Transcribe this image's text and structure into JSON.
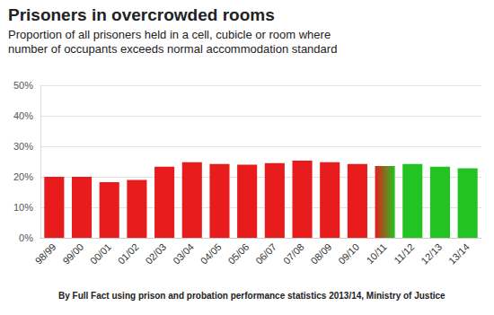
{
  "chart_data": {
    "type": "bar",
    "title": "Prisoners in overcrowded rooms",
    "subtitle": "Proportion of all prisoners held in a cell, cubicle or room where\nnumber of occupants exceeds normal accommodation standard",
    "source": "By Full Fact using prison and probation performance statistics 2013/14, Ministry of Justice",
    "categories": [
      "98/99",
      "99/00",
      "00/01",
      "01/02",
      "02/03",
      "03/04",
      "04/05",
      "05/06",
      "06/07",
      "07/08",
      "08/09",
      "09/10",
      "10/11",
      "11/12",
      "12/13",
      "13/14"
    ],
    "values": [
      20,
      20,
      18.2,
      19,
      23.3,
      24.8,
      24.2,
      24,
      24.5,
      25.3,
      24.8,
      24.2,
      23.5,
      24.2,
      23.3,
      22.8
    ],
    "colors": [
      "#e81c1c",
      "#e81c1c",
      "#e81c1c",
      "#e81c1c",
      "#e81c1c",
      "#e81c1c",
      "#e81c1c",
      "#e81c1c",
      "#e81c1c",
      "#e81c1c",
      "#e81c1c",
      "#e81c1c",
      [
        "#e81c1c",
        "#22c322"
      ],
      "#22c322",
      "#22c322",
      "#22c322"
    ],
    "ylim": [
      0,
      50
    ],
    "yticks": [
      {
        "value": 0,
        "label": "0%"
      },
      {
        "value": 10,
        "label": "10%"
      },
      {
        "value": 20,
        "label": "20%"
      },
      {
        "value": 30,
        "label": "30%"
      },
      {
        "value": 40,
        "label": "40%"
      },
      {
        "value": 50,
        "label": "50%"
      }
    ],
    "grid": true
  }
}
